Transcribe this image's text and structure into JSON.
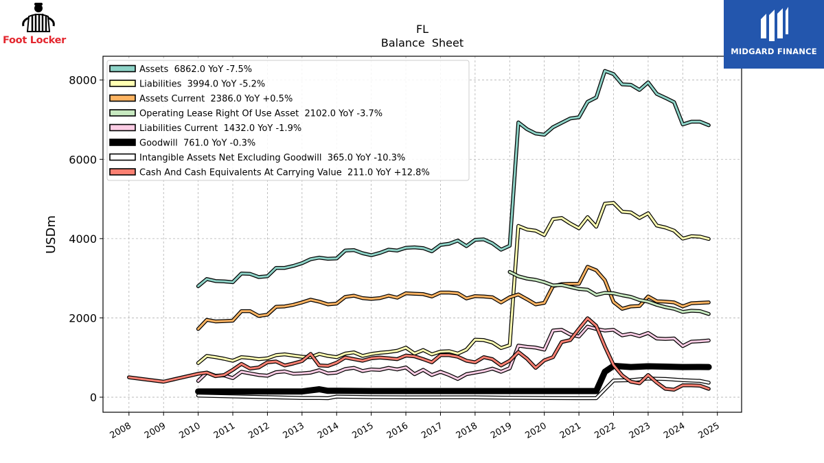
{
  "logos": {
    "left_text": "Foot Locker",
    "right_text": "MIDGARD FINANCE"
  },
  "chart_data": {
    "type": "line",
    "title": "FL",
    "subtitle": "Balance  Sheet",
    "xlabel": "",
    "ylabel": "USDm",
    "xlim": [
      2007.25,
      2025.7
    ],
    "ylim": [
      -380,
      8600
    ],
    "grid": true,
    "legend_position": "top-left",
    "x_ticks": [
      2008,
      2009,
      2010,
      2011,
      2012,
      2013,
      2014,
      2015,
      2016,
      2017,
      2018,
      2019,
      2020,
      2021,
      2022,
      2023,
      2024,
      2025
    ],
    "y_ticks": [
      0,
      2000,
      4000,
      6000,
      8000
    ],
    "series": [
      {
        "name": "Assets  6862.0 YoY -7.5%",
        "color": "#8dd3c7",
        "x": [
          2010.0,
          2010.25,
          2010.5,
          2010.75,
          2011.0,
          2011.25,
          2011.5,
          2011.75,
          2012.0,
          2012.25,
          2012.5,
          2012.75,
          2013.0,
          2013.25,
          2013.5,
          2013.75,
          2014.0,
          2014.25,
          2014.5,
          2014.75,
          2015.0,
          2015.25,
          2015.5,
          2015.75,
          2016.0,
          2016.25,
          2016.5,
          2016.75,
          2017.0,
          2017.25,
          2017.5,
          2017.75,
          2018.0,
          2018.25,
          2018.5,
          2018.75,
          2019.0,
          2019.25,
          2019.5,
          2019.75,
          2020.0,
          2020.25,
          2020.5,
          2020.75,
          2021.0,
          2021.25,
          2021.5,
          2021.75,
          2022.0,
          2022.25,
          2022.5,
          2022.75,
          2023.0,
          2023.25,
          2023.5,
          2023.75,
          2024.0,
          2024.25,
          2024.5,
          2024.75
        ],
        "values": [
          2800,
          2980,
          2930,
          2920,
          2900,
          3120,
          3110,
          3030,
          3050,
          3260,
          3260,
          3310,
          3380,
          3480,
          3520,
          3490,
          3500,
          3700,
          3710,
          3630,
          3580,
          3640,
          3720,
          3700,
          3770,
          3780,
          3760,
          3680,
          3840,
          3870,
          3950,
          3810,
          3970,
          3980,
          3880,
          3720,
          3820,
          6930,
          6760,
          6650,
          6620,
          6810,
          6920,
          7030,
          7060,
          7450,
          7560,
          8230,
          8150,
          7890,
          7880,
          7750,
          7940,
          7650,
          7550,
          7440,
          6880,
          6950,
          6950,
          6860
        ]
      },
      {
        "name": "Liabilities  3994.0 YoY -5.2%",
        "color": "#ffffb3",
        "x": [
          2010.0,
          2010.25,
          2010.5,
          2010.75,
          2011.0,
          2011.25,
          2011.5,
          2011.75,
          2012.0,
          2012.25,
          2012.5,
          2012.75,
          2013.0,
          2013.25,
          2013.5,
          2013.75,
          2014.0,
          2014.25,
          2014.5,
          2014.75,
          2015.0,
          2015.25,
          2015.5,
          2015.75,
          2016.0,
          2016.25,
          2016.5,
          2016.75,
          2017.0,
          2017.25,
          2017.5,
          2017.75,
          2018.0,
          2018.25,
          2018.5,
          2018.75,
          2019.0,
          2019.25,
          2019.5,
          2019.75,
          2020.0,
          2020.25,
          2020.5,
          2020.75,
          2021.0,
          2021.25,
          2021.5,
          2021.75,
          2022.0,
          2022.25,
          2022.5,
          2022.75,
          2023.0,
          2023.25,
          2023.5,
          2023.75,
          2024.0,
          2024.25,
          2024.5,
          2024.75
        ],
        "values": [
          860,
          1040,
          1010,
          970,
          920,
          1010,
          990,
          960,
          980,
          1060,
          1080,
          1050,
          1020,
          1010,
          1090,
          1040,
          1010,
          1100,
          1130,
          1040,
          1090,
          1120,
          1140,
          1170,
          1250,
          1100,
          1190,
          1080,
          1150,
          1160,
          1100,
          1200,
          1450,
          1440,
          1380,
          1240,
          1310,
          4320,
          4230,
          4200,
          4090,
          4490,
          4520,
          4380,
          4260,
          4540,
          4300,
          4880,
          4900,
          4680,
          4660,
          4520,
          4640,
          4330,
          4280,
          4200,
          4000,
          4060,
          4050,
          3990
        ]
      },
      {
        "name": "Assets Current  2386.0 YoY +0.5%",
        "color": "#fdb462",
        "x": [
          2010.0,
          2010.25,
          2010.5,
          2010.75,
          2011.0,
          2011.25,
          2011.5,
          2011.75,
          2012.0,
          2012.25,
          2012.5,
          2012.75,
          2013.0,
          2013.25,
          2013.5,
          2013.75,
          2014.0,
          2014.25,
          2014.5,
          2014.75,
          2015.0,
          2015.25,
          2015.5,
          2015.75,
          2016.0,
          2016.25,
          2016.5,
          2016.75,
          2017.0,
          2017.25,
          2017.5,
          2017.75,
          2018.0,
          2018.25,
          2018.5,
          2018.75,
          2019.0,
          2019.25,
          2019.5,
          2019.75,
          2020.0,
          2020.25,
          2020.5,
          2020.75,
          2021.0,
          2021.25,
          2021.5,
          2021.75,
          2022.0,
          2022.25,
          2022.5,
          2022.75,
          2023.0,
          2023.25,
          2023.5,
          2023.75,
          2024.0,
          2024.25,
          2024.5,
          2024.75
        ],
        "values": [
          1720,
          1950,
          1910,
          1920,
          1930,
          2170,
          2170,
          2050,
          2080,
          2280,
          2290,
          2330,
          2390,
          2460,
          2410,
          2340,
          2360,
          2530,
          2560,
          2500,
          2480,
          2500,
          2560,
          2510,
          2620,
          2610,
          2600,
          2540,
          2640,
          2640,
          2620,
          2490,
          2550,
          2540,
          2520,
          2390,
          2520,
          2590,
          2470,
          2340,
          2380,
          2800,
          2850,
          2860,
          2860,
          3290,
          3200,
          2950,
          2400,
          2230,
          2290,
          2300,
          2540,
          2420,
          2410,
          2390,
          2290,
          2370,
          2380,
          2390
        ]
      },
      {
        "name": "Operating Lease Right Of Use Asset  2102.0 YoY -3.7%",
        "color": "#c7e9c0",
        "x": [
          2019.0,
          2019.25,
          2019.5,
          2019.75,
          2020.0,
          2020.25,
          2020.5,
          2020.75,
          2021.0,
          2021.25,
          2021.5,
          2021.75,
          2022.0,
          2022.25,
          2022.5,
          2022.75,
          2023.0,
          2023.25,
          2023.5,
          2023.75,
          2024.0,
          2024.25,
          2024.5,
          2024.75
        ],
        "values": [
          3160,
          3050,
          2990,
          2960,
          2900,
          2820,
          2830,
          2780,
          2730,
          2710,
          2580,
          2630,
          2620,
          2570,
          2530,
          2450,
          2410,
          2330,
          2270,
          2230,
          2150,
          2180,
          2170,
          2100
        ]
      },
      {
        "name": "Liabilities Current  1432.0 YoY -1.9%",
        "color": "#fccde5",
        "x": [
          2010.0,
          2010.25,
          2010.5,
          2010.75,
          2011.0,
          2011.25,
          2011.5,
          2011.75,
          2012.0,
          2012.25,
          2012.5,
          2012.75,
          2013.0,
          2013.25,
          2013.5,
          2013.75,
          2014.0,
          2014.25,
          2014.5,
          2014.75,
          2015.0,
          2015.25,
          2015.5,
          2015.75,
          2016.0,
          2016.25,
          2016.5,
          2016.75,
          2017.0,
          2017.25,
          2017.5,
          2017.75,
          2018.0,
          2018.25,
          2018.5,
          2018.75,
          2019.0,
          2019.25,
          2019.5,
          2019.75,
          2020.0,
          2020.25,
          2020.5,
          2020.75,
          2021.0,
          2021.25,
          2021.5,
          2021.75,
          2022.0,
          2022.25,
          2022.5,
          2022.75,
          2023.0,
          2023.25,
          2023.5,
          2023.75,
          2024.0,
          2024.25,
          2024.5,
          2024.75
        ],
        "values": [
          410,
          620,
          540,
          550,
          480,
          640,
          600,
          560,
          540,
          630,
          650,
          590,
          600,
          620,
          680,
          600,
          620,
          710,
          740,
          660,
          700,
          690,
          740,
          700,
          750,
          580,
          690,
          560,
          640,
          560,
          460,
          580,
          620,
          660,
          720,
          640,
          730,
          1300,
          1270,
          1250,
          1200,
          1680,
          1700,
          1580,
          1530,
          1780,
          1720,
          1680,
          1700,
          1560,
          1600,
          1540,
          1620,
          1480,
          1470,
          1480,
          1290,
          1400,
          1410,
          1430
        ]
      },
      {
        "name": "Goodwill  761.0 YoY -0.3%",
        "color": "#000000",
        "x": [
          2010.0,
          2011.0,
          2012.0,
          2013.0,
          2013.5,
          2013.75,
          2014.0,
          2015.0,
          2016.0,
          2017.0,
          2018.0,
          2019.0,
          2020.0,
          2021.0,
          2021.5,
          2021.75,
          2022.0,
          2022.5,
          2023.0,
          2023.5,
          2024.0,
          2024.5,
          2024.75
        ],
        "values": [
          145,
          145,
          145,
          145,
          200,
          160,
          160,
          155,
          155,
          155,
          155,
          155,
          155,
          155,
          155,
          640,
          790,
          760,
          780,
          770,
          760,
          762,
          761
        ]
      },
      {
        "name": "Intangible Assets Net Excluding Goodwill  365.0 YoY -10.3%",
        "color": "#ffffff",
        "x": [
          2010.0,
          2011.0,
          2012.0,
          2013.0,
          2013.5,
          2013.75,
          2014.0,
          2015.0,
          2016.0,
          2017.0,
          2018.0,
          2019.0,
          2020.0,
          2021.0,
          2021.5,
          2021.75,
          2022.0,
          2022.5,
          2023.0,
          2023.5,
          2024.0,
          2024.5,
          2024.75
        ],
        "values": [
          40,
          20,
          0,
          -20,
          -20,
          -25,
          15,
          0,
          -5,
          -5,
          -5,
          -15,
          -20,
          -25,
          -25,
          200,
          420,
          430,
          470,
          460,
          430,
          410,
          365
        ]
      },
      {
        "name": "Cash And Cash Equivalents At Carrying Value  211.0 YoY +12.8%",
        "color": "#fb8072",
        "x": [
          2008.0,
          2009.0,
          2010.0,
          2010.25,
          2010.5,
          2010.75,
          2011.0,
          2011.25,
          2011.5,
          2011.75,
          2012.0,
          2012.25,
          2012.5,
          2012.75,
          2013.0,
          2013.25,
          2013.5,
          2013.75,
          2014.0,
          2014.25,
          2014.5,
          2014.75,
          2015.0,
          2015.25,
          2015.5,
          2015.75,
          2016.0,
          2016.25,
          2016.5,
          2016.75,
          2017.0,
          2017.25,
          2017.5,
          2017.75,
          2018.0,
          2018.25,
          2018.5,
          2018.75,
          2019.0,
          2019.25,
          2019.5,
          2019.75,
          2020.0,
          2020.25,
          2020.5,
          2020.75,
          2021.0,
          2021.25,
          2021.5,
          2021.75,
          2022.0,
          2022.25,
          2022.5,
          2022.75,
          2023.0,
          2023.25,
          2023.5,
          2023.75,
          2024.0,
          2024.25,
          2024.5,
          2024.75
        ],
        "values": [
          500,
          390,
          590,
          620,
          530,
          560,
          690,
          840,
          720,
          750,
          880,
          900,
          800,
          850,
          910,
          1090,
          800,
          790,
          870,
          1000,
          960,
          920,
          980,
          1000,
          980,
          960,
          1050,
          1030,
          960,
          880,
          1060,
          1060,
          1020,
          920,
          880,
          1010,
          960,
          800,
          920,
          1140,
          970,
          740,
          930,
          1010,
          1390,
          1440,
          1720,
          1990,
          1800,
          1280,
          810,
          550,
          390,
          350,
          560,
          370,
          210,
          190,
          300,
          300,
          290,
          210
        ]
      }
    ]
  }
}
